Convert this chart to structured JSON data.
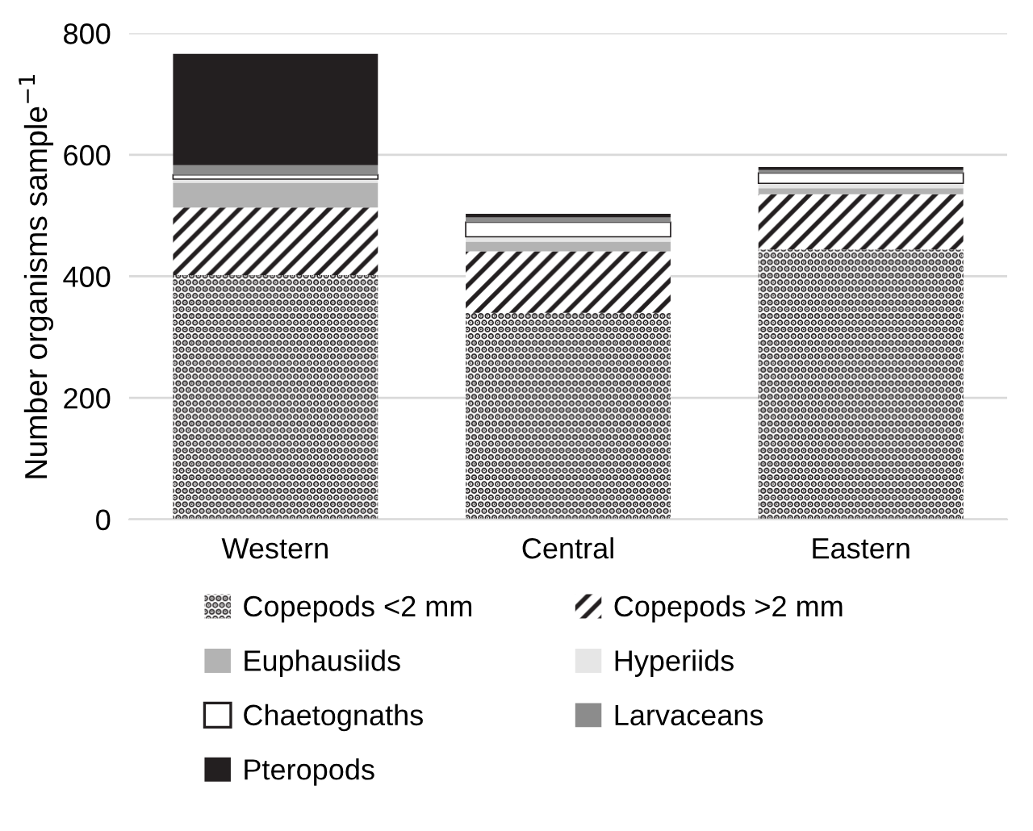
{
  "chart_data": {
    "type": "bar",
    "stacked": true,
    "ylabel": "Number organisms sample$^{−1}$",
    "categories": [
      "Western",
      "Central",
      "Eastern"
    ],
    "series": [
      {
        "name": "Copepods <2 mm",
        "color": "#ffffff",
        "values": [
          402,
          340,
          444
        ]
      },
      {
        "name": "Copepods >2 mm",
        "color": "#ffffff",
        "values": [
          111,
          101,
          91
        ]
      },
      {
        "name": "Euphausiids",
        "color": "#b3b3b3",
        "values": [
          41,
          16,
          10
        ]
      },
      {
        "name": "Hyperiids",
        "color": "#e6e6e6",
        "values": [
          6,
          8,
          8
        ]
      },
      {
        "name": "Chaetognaths",
        "color": "#ffffff",
        "values": [
          7,
          24,
          17
        ]
      },
      {
        "name": "Larvaceans",
        "color": "#8c8c8c",
        "values": [
          16,
          8,
          5
        ]
      },
      {
        "name": "Pteropods",
        "color": "#231f20",
        "values": [
          183,
          6,
          5
        ]
      }
    ],
    "ylim": [
      0,
      800
    ],
    "yticks": [
      0,
      200,
      400,
      600,
      800
    ],
    "grid": "y",
    "legend": "bottom"
  }
}
